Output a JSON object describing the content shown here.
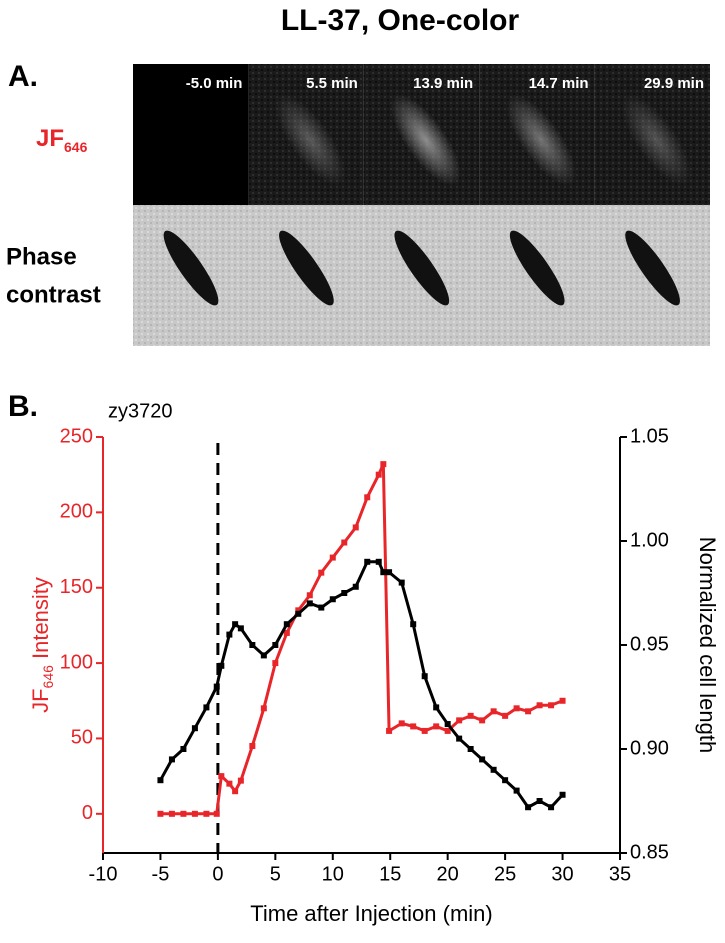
{
  "title": "LL-37, One-color",
  "panel_a": {
    "label": "A.",
    "channel": [
      "JF",
      "646"
    ],
    "phase": [
      "Phase",
      "contrast"
    ],
    "times": [
      "-5.0 min",
      "5.5 min",
      "13.9 min",
      "14.7 min",
      "29.9 min"
    ]
  },
  "panel_b": {
    "label": "B."
  },
  "chart_data": {
    "type": "line",
    "title": "zy3720",
    "xlabel": "Time after Injection (min)",
    "ylabel": [
      "JF",
      "646",
      " Intensity"
    ],
    "y2label": "Normalized cell length",
    "x": [
      -5,
      -4,
      -3,
      -2,
      -1,
      -0.1,
      0.3,
      1,
      1.5,
      2,
      3,
      4,
      5,
      6,
      7,
      8,
      9,
      10,
      11,
      12,
      13,
      14,
      14.4,
      14.9,
      16,
      17,
      18,
      19,
      20,
      21,
      22,
      23,
      24,
      25,
      26,
      27,
      28,
      29,
      30
    ],
    "series": [
      {
        "color": "#e8262a",
        "values": [
          0,
          0,
          0,
          0,
          0,
          0,
          25,
          20,
          15,
          22,
          45,
          70,
          100,
          120,
          135,
          145,
          160,
          170,
          180,
          190,
          210,
          225,
          232,
          55,
          60,
          58,
          55,
          58,
          55,
          62,
          65,
          62,
          68,
          65,
          70,
          68,
          72,
          72,
          75
        ]
      },
      {
        "color": "#000000",
        "axis": "y2",
        "values": [
          0.885,
          0.895,
          0.9,
          0.91,
          0.92,
          0.93,
          0.94,
          0.955,
          0.96,
          0.958,
          0.95,
          0.945,
          0.95,
          0.96,
          0.965,
          0.97,
          0.968,
          0.972,
          0.975,
          0.978,
          0.99,
          0.99,
          0.985,
          0.985,
          0.98,
          0.96,
          0.935,
          0.92,
          0.912,
          0.905,
          0.9,
          0.895,
          0.89,
          0.885,
          0.88,
          0.872,
          0.875,
          0.872,
          0.878
        ]
      }
    ],
    "xlim": [
      -10,
      35
    ],
    "xticks": [
      -10,
      -5,
      0,
      5,
      10,
      15,
      20,
      25,
      30,
      35
    ],
    "ylim": [
      -26,
      250
    ],
    "yticks": [
      0,
      50,
      100,
      150,
      200,
      250
    ],
    "y2lim": [
      0.85,
      1.05
    ],
    "y2ticks": [
      0.85,
      {
        "value": 0.9,
        "label": "0.90"
      },
      0.95,
      {
        "value": 1,
        "label": "1.00"
      },
      1.05
    ],
    "vline": 0
  }
}
